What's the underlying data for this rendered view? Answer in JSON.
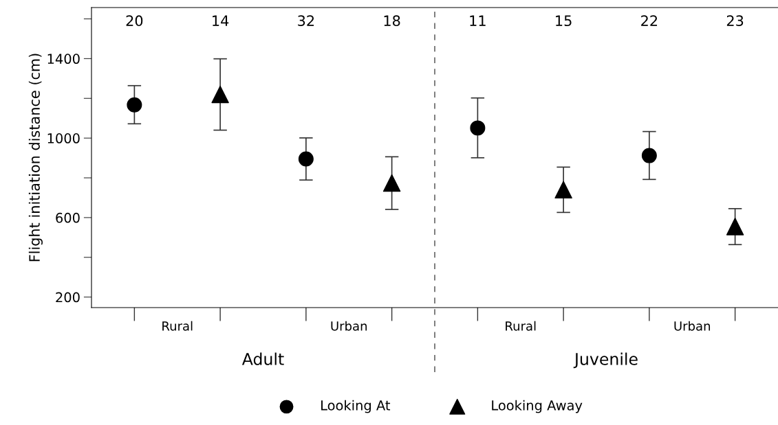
{
  "chart_data": {
    "type": "scatter",
    "ylabel": "Flight initiation distance (cm)",
    "categories": [
      null,
      null,
      null,
      null,
      null,
      null,
      null,
      null
    ],
    "series": [
      {
        "name": "Looking At",
        "color": "#000000",
        "marker": "circle",
        "values": [
          1167,
          null,
          895,
          null,
          1051,
          null,
          912,
          null
        ],
        "errors": [
          [
            1072,
            1264
          ],
          null,
          [
            789,
            1001
          ],
          null,
          [
            901,
            1202
          ],
          null,
          [
            792,
            1033
          ],
          null
        ]
      },
      {
        "name": "Looking Away",
        "color": "#000000",
        "marker": "triangle",
        "values": [
          null,
          1220,
          null,
          774,
          null,
          740,
          null,
          555
        ],
        "errors": [
          null,
          [
            1040,
            1399
          ],
          null,
          [
            641,
            906
          ],
          null,
          [
            626,
            854
          ],
          null,
          [
            464,
            645
          ]
        ]
      }
    ],
    "ylim": [
      147,
      1657
    ],
    "yticks": [
      200,
      {
        "value": 400,
        "label": null
      },
      600,
      {
        "value": 800,
        "label": null
      },
      1000,
      {
        "value": 1200,
        "label": null
      },
      1400,
      {
        "value": 1600,
        "label": null
      }
    ],
    "annotations": [
      "20",
      "14",
      "32",
      "18",
      "11",
      "15",
      "22",
      "23",
      "Rural",
      "Urban",
      "Rural",
      "Urban",
      "Adult",
      "Juvenile"
    ],
    "grid": false,
    "legend": "bottom"
  }
}
